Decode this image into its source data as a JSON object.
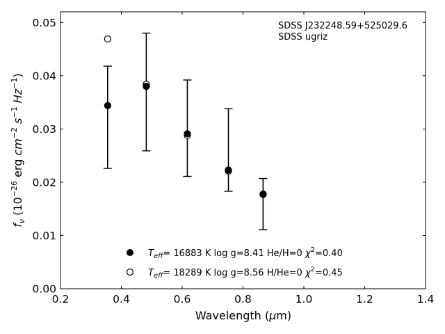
{
  "chart_data": {
    "type": "scatter",
    "xlabel": "Wavelength (μm)",
    "ylabel": "f_ν (10^-26 erg cm^-2 s^-1 Hz^-1)",
    "xlim": [
      0.2,
      1.4
    ],
    "ylim": [
      0.0,
      0.052
    ],
    "x_ticks": [
      "0.2",
      "0.4",
      "0.6",
      "0.8",
      "1.0",
      "1.2",
      "1.4"
    ],
    "y_ticks": [
      "0.00",
      "0.01",
      "0.02",
      "0.03",
      "0.04",
      "0.05"
    ],
    "x_tick_values": [
      0.2,
      0.4,
      0.6,
      0.8,
      1.0,
      1.2,
      1.4
    ],
    "y_tick_values": [
      0.0,
      0.01,
      0.02,
      0.03,
      0.04,
      0.05
    ],
    "annotation": [
      "SDSS J232248.59+525029.6",
      "SDSS ugriz"
    ],
    "observed": {
      "x": [
        0.355,
        0.482,
        0.617,
        0.752,
        0.866
      ],
      "y": [
        0.0343,
        0.0381,
        0.029,
        0.0221,
        0.0178
      ],
      "y_low": [
        0.0226,
        0.0259,
        0.0211,
        0.0183,
        0.0111
      ],
      "y_high": [
        0.0418,
        0.048,
        0.0392,
        0.0338,
        0.0207
      ]
    },
    "series": [
      {
        "marker": "filled-circle",
        "legend": {
          "teff": "= 16883 K",
          "logg": "log g=8.41",
          "comp": "He/H=0",
          "chi": "=0.40"
        },
        "x": [
          0.355,
          0.482,
          0.617,
          0.752,
          0.866
        ],
        "y": [
          0.0344,
          0.038,
          0.0291,
          0.0223,
          0.0178
        ]
      },
      {
        "marker": "open-circle",
        "legend": {
          "teff": "= 18289 K",
          "logg": "log g=8.56",
          "comp": "H/He=0",
          "chi": "=0.45"
        },
        "x": [
          0.355,
          0.482,
          0.617,
          0.752,
          0.866
        ],
        "y": [
          0.0469,
          0.0384,
          0.0288,
          0.0221,
          0.0177
        ]
      }
    ]
  }
}
